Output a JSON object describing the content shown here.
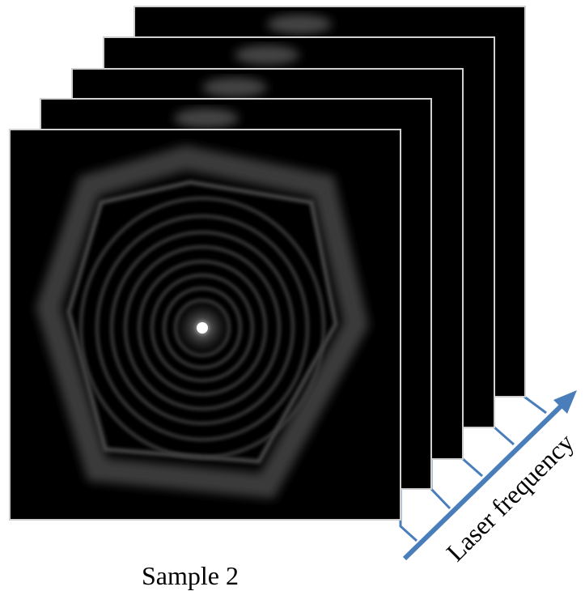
{
  "caption": "Sample 2",
  "axis_label": "Laser frequency"
}
